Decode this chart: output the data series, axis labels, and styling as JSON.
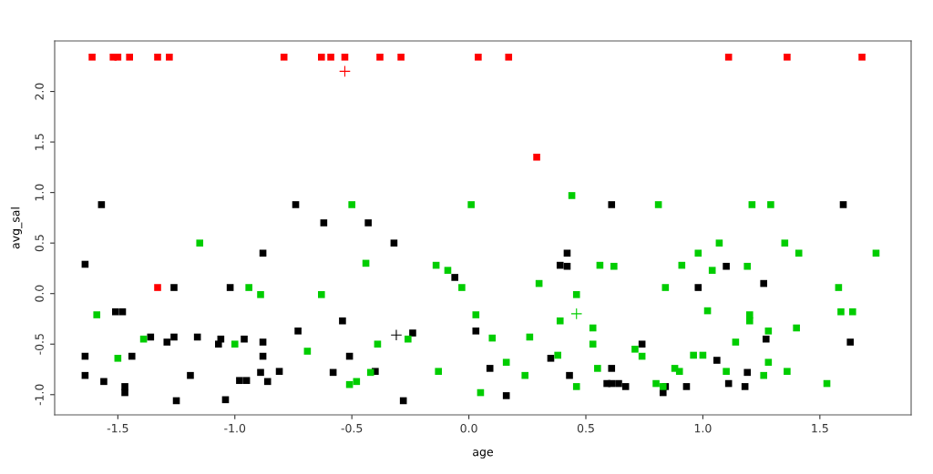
{
  "chart_data": {
    "type": "scatter",
    "xlabel": "age",
    "ylabel": "avg_sal",
    "xlim": [
      -1.77,
      1.89
    ],
    "ylim": [
      -1.2,
      2.5
    ],
    "xticks": [
      {
        "value": -1.5,
        "label": "-1.5"
      },
      {
        "value": -1.0,
        "label": "-1.0"
      },
      {
        "value": -0.5,
        "label": "-0.5"
      },
      {
        "value": 0,
        "label": "0.0"
      },
      {
        "value": 0.5,
        "label": "0.5"
      },
      {
        "value": 1.0,
        "label": "1.0"
      },
      {
        "value": 1.5,
        "label": "1.5"
      }
    ],
    "yticks": [
      {
        "value": -1.0,
        "label": "-1.0"
      },
      {
        "value": -0.5,
        "label": "-0.5"
      },
      {
        "value": 0,
        "label": "0.0"
      },
      {
        "value": 0.5,
        "label": "0.5"
      },
      {
        "value": 1.0,
        "label": "1.0"
      },
      {
        "value": 1.5,
        "label": "1.5"
      },
      {
        "value": 2.0,
        "label": "2.0"
      }
    ],
    "grid": false,
    "legend": false,
    "series": [
      {
        "color": "#ff0000",
        "marker": "square",
        "x": [
          -1.61,
          -1.52,
          -1.5,
          -1.45,
          -1.33,
          -1.28,
          -0.79,
          -0.63,
          -0.59,
          -0.53,
          -0.38,
          -0.29,
          0.04,
          0.17,
          1.11,
          1.36,
          1.68,
          0.29,
          -1.33
        ],
        "values": [
          2.34,
          2.34,
          2.34,
          2.34,
          2.34,
          2.34,
          2.34,
          2.34,
          2.34,
          2.34,
          2.34,
          2.34,
          2.34,
          2.34,
          2.34,
          2.34,
          2.34,
          1.35,
          0.06
        ]
      },
      {
        "color": "#000000",
        "marker": "square",
        "x": [
          -1.57,
          -0.74,
          -0.62,
          0.61,
          -0.43,
          1.6,
          -1.64,
          -0.88,
          -1.26,
          -1.02,
          -1.51,
          -1.48,
          -0.54,
          -1.36,
          -1.26,
          -1.16,
          -1.06,
          -1.07,
          -1.29,
          -0.96,
          -0.88,
          -0.73,
          -1.64,
          -1.44,
          -0.88,
          -1.64,
          -1.19,
          -1.56,
          -1.47,
          -1.47,
          -1.25,
          -1.04,
          -0.98,
          -0.95,
          -0.89,
          -0.86,
          -0.81,
          -0.58,
          -0.32,
          -0.06,
          -0.24,
          -0.51,
          -0.4,
          -0.28,
          0.03,
          0.09,
          0.16,
          0.42,
          0.39,
          0.42,
          0.35,
          0.43,
          0.61,
          0.59,
          0.61,
          0.64,
          0.67,
          0.74,
          1.1,
          0.98,
          1.26,
          1.27,
          1.63,
          1.06,
          1.19,
          0.84,
          0.83,
          0.93,
          1.11,
          1.18
        ],
        "values": [
          0.88,
          0.88,
          0.7,
          0.88,
          0.7,
          0.88,
          0.29,
          0.4,
          0.06,
          0.06,
          -0.18,
          -0.18,
          -0.27,
          -0.43,
          -0.43,
          -0.43,
          -0.45,
          -0.5,
          -0.48,
          -0.45,
          -0.48,
          -0.37,
          -0.62,
          -0.62,
          -0.62,
          -0.81,
          -0.81,
          -0.87,
          -0.92,
          -0.98,
          -1.06,
          -1.05,
          -0.86,
          -0.86,
          -0.78,
          -0.87,
          -0.77,
          -0.78,
          0.5,
          0.16,
          -0.39,
          -0.62,
          -0.77,
          -1.06,
          -0.37,
          -0.74,
          -1.01,
          0.4,
          0.28,
          0.27,
          -0.64,
          -0.81,
          -0.74,
          -0.89,
          -0.89,
          -0.89,
          -0.92,
          -0.5,
          0.27,
          0.06,
          0.1,
          -0.45,
          -0.48,
          -0.66,
          -0.78,
          -0.92,
          -0.98,
          -0.92,
          -0.89,
          -0.92
        ]
      },
      {
        "color": "#00cd00",
        "marker": "square",
        "x": [
          -0.5,
          0.01,
          0.44,
          0.81,
          1.21,
          1.29,
          -1.15,
          -0.94,
          -0.89,
          -0.63,
          -1.59,
          -1.39,
          -1.5,
          -1.0,
          -0.69,
          -0.44,
          -0.14,
          -0.09,
          -0.03,
          0.03,
          -0.26,
          -0.39,
          -0.42,
          -0.51,
          -0.48,
          -0.13,
          0.05,
          0.1,
          0.16,
          0.24,
          0.26,
          0.3,
          0.39,
          0.38,
          0.46,
          0.46,
          0.53,
          0.53,
          0.55,
          0.56,
          0.62,
          1.07,
          1.35,
          0.98,
          1.41,
          1.74,
          0.91,
          1.04,
          1.19,
          0.84,
          1.58,
          1.02,
          1.2,
          1.2,
          1.59,
          1.64,
          1.28,
          1.4,
          1.14,
          0.71,
          0.74,
          0.96,
          1.0,
          1.28,
          0.88,
          0.9,
          1.1,
          1.36,
          1.26,
          0.8,
          0.83,
          1.53
        ],
        "values": [
          0.88,
          0.88,
          0.97,
          0.88,
          0.88,
          0.88,
          0.5,
          0.06,
          -0.01,
          -0.01,
          -0.21,
          -0.45,
          -0.64,
          -0.5,
          -0.57,
          0.3,
          0.28,
          0.23,
          0.06,
          -0.21,
          -0.45,
          -0.5,
          -0.78,
          -0.9,
          -0.87,
          -0.77,
          -0.98,
          -0.44,
          -0.68,
          -0.81,
          -0.43,
          0.1,
          -0.27,
          -0.61,
          -0.01,
          -0.92,
          -0.34,
          -0.5,
          -0.74,
          0.28,
          0.27,
          0.5,
          0.5,
          0.4,
          0.4,
          0.4,
          0.28,
          0.23,
          0.27,
          0.06,
          0.06,
          -0.17,
          -0.21,
          -0.27,
          -0.18,
          -0.18,
          -0.37,
          -0.34,
          -0.48,
          -0.55,
          -0.62,
          -0.61,
          -0.61,
          -0.68,
          -0.74,
          -0.77,
          -0.77,
          -0.77,
          -0.81,
          -0.89,
          -0.92,
          -0.89
        ]
      },
      {
        "color": "#ff0000",
        "marker": "cross",
        "x": [
          -0.53
        ],
        "values": [
          2.2
        ]
      },
      {
        "color": "#000000",
        "marker": "cross",
        "x": [
          -0.31
        ],
        "values": [
          -0.41
        ]
      },
      {
        "color": "#00cd00",
        "marker": "cross",
        "x": [
          0.46
        ],
        "values": [
          -0.2
        ]
      }
    ]
  }
}
